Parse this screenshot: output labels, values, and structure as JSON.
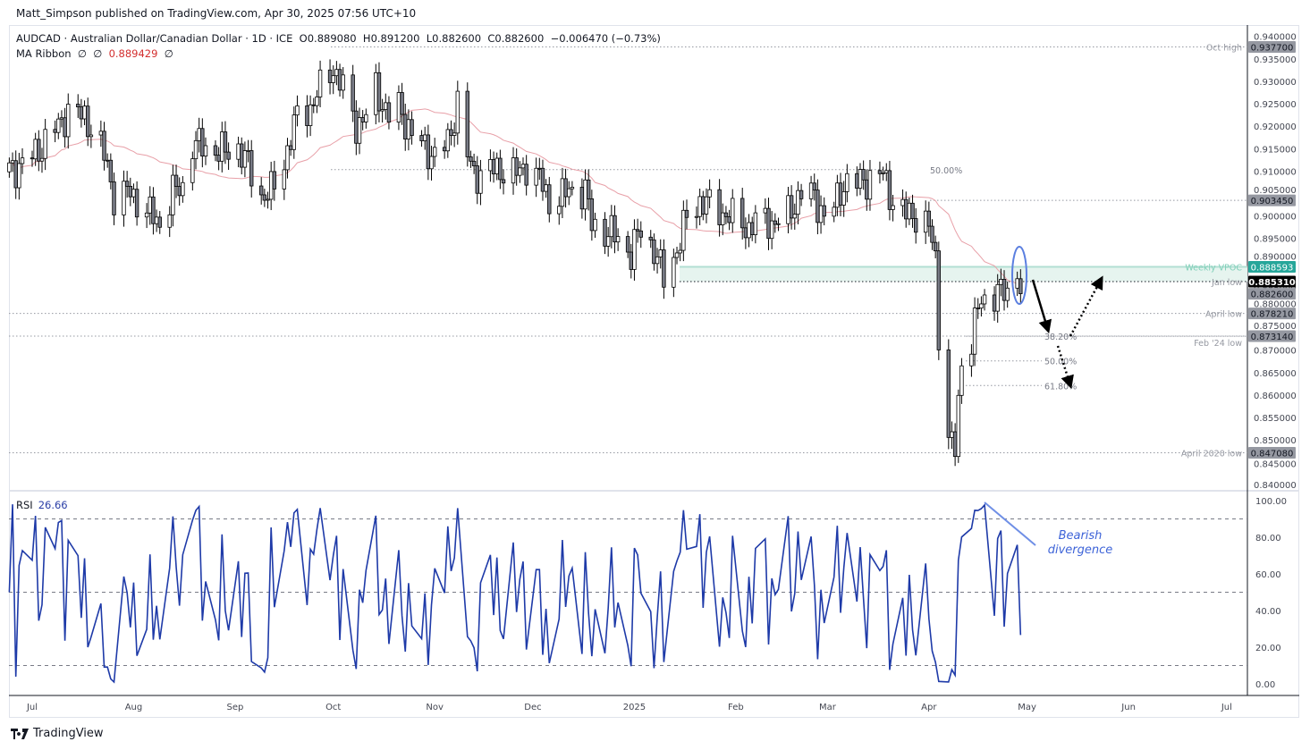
{
  "publisher": "Matt_Simpson published on TradingView.com, Apr 30, 2025 07:56 UTC+10",
  "legend": {
    "symbol": "AUDCAD · Australian Dollar/Canadian Dollar · 1D · ICE",
    "open": "O0.889080",
    "high": "H0.891200",
    "low": "L0.882600",
    "close": "C0.882600",
    "change": "−0.006470 (−0.73%)",
    "ma_label": "MA Ribbon",
    "ma_a": "∅",
    "ma_b": "∅",
    "ma_value": "0.889429",
    "ma_c": "∅"
  },
  "rsi": {
    "label": "RSI",
    "value": "26.66",
    "levels": [
      90,
      50,
      10
    ]
  },
  "annotation": {
    "bearish_line1": "Bearish",
    "bearish_line2": "divergence"
  },
  "footer": {
    "brand": "TradingView"
  },
  "colors": {
    "up": "#ffffff",
    "down": "#787b86",
    "outline": "#000000",
    "ma": "#e8a0a8",
    "rsi": "#1e3aa8",
    "vpoc": "#26a69a",
    "vpoc_zone": "#e6f4ef",
    "ellipse": "#5b7fe0"
  },
  "chart_data": {
    "type": "candlestick",
    "symbol": "AUDCAD",
    "interval": "1D",
    "last_bar": {
      "open": 0.88908,
      "high": 0.8912,
      "low": 0.8826,
      "close": 0.8826
    },
    "ylim": [
      0.84,
      0.94
    ],
    "y_ticks": [
      "0.940000",
      "0.935000",
      "0.930000",
      "0.925000",
      "0.920000",
      "0.915000",
      "0.910000",
      "0.905000",
      "0.900000",
      "0.895000",
      "0.890000",
      "0.885000",
      "0.880000",
      "0.875000",
      "0.870000",
      "0.865000",
      "0.860000",
      "0.855000",
      "0.850000",
      "0.845000",
      "0.840000"
    ],
    "x_ticks": [
      {
        "label": "Jul",
        "date": "2024-07-01"
      },
      {
        "label": "Aug",
        "date": "2024-08-01"
      },
      {
        "label": "Sep",
        "date": "2024-09-01"
      },
      {
        "label": "Oct",
        "date": "2024-10-01"
      },
      {
        "label": "Nov",
        "date": "2024-11-01"
      },
      {
        "label": "Dec",
        "date": "2024-12-01"
      },
      {
        "label": "2025",
        "date": "2025-01-01"
      },
      {
        "label": "Feb",
        "date": "2025-02-01"
      },
      {
        "label": "Mar",
        "date": "2025-03-01"
      },
      {
        "label": "Apr",
        "date": "2025-04-01"
      },
      {
        "label": "May",
        "date": "2025-05-01"
      },
      {
        "label": "Jun",
        "date": "2025-06-01"
      },
      {
        "label": "Jul",
        "date": "2025-07-01"
      }
    ],
    "rsi_ticks": [
      "100.00",
      "80.00",
      "60.00",
      "40.00",
      "20.00",
      "0.00"
    ],
    "approx_closes": [
      [
        "2024-06-24",
        0.9103
      ],
      [
        "2024-06-28",
        0.9113
      ],
      [
        "2024-07-05",
        0.9162
      ],
      [
        "2024-07-08",
        0.9192
      ],
      [
        "2024-07-12",
        0.9232
      ],
      [
        "2024-07-17",
        0.9222
      ],
      [
        "2024-07-21",
        0.9172
      ],
      [
        "2024-07-24",
        0.9113
      ],
      [
        "2024-07-26",
        0.9043
      ],
      [
        "2024-07-31",
        0.9053
      ],
      [
        "2024-08-02",
        0.9033
      ],
      [
        "2024-08-06",
        0.9003
      ],
      [
        "2024-08-09",
        0.8983
      ],
      [
        "2024-08-13",
        0.9053
      ],
      [
        "2024-08-16",
        0.9063
      ],
      [
        "2024-08-19",
        0.9162
      ],
      [
        "2024-08-23",
        0.9152
      ],
      [
        "2024-08-29",
        0.9142
      ],
      [
        "2024-09-02",
        0.9152
      ],
      [
        "2024-09-05",
        0.9113
      ],
      [
        "2024-09-09",
        0.9043
      ],
      [
        "2024-09-12",
        0.9053
      ],
      [
        "2024-09-16",
        0.9123
      ],
      [
        "2024-09-20",
        0.9222
      ],
      [
        "2024-09-24",
        0.9242
      ],
      [
        "2024-09-27",
        0.9282
      ],
      [
        "2024-10-01",
        0.9332
      ],
      [
        "2024-10-04",
        0.9282
      ],
      [
        "2024-10-08",
        0.9202
      ],
      [
        "2024-10-11",
        0.9222
      ],
      [
        "2024-10-14",
        0.9282
      ],
      [
        "2024-10-18",
        0.9222
      ],
      [
        "2024-10-21",
        0.9242
      ],
      [
        "2024-10-25",
        0.9182
      ],
      [
        "2024-10-29",
        0.9152
      ],
      [
        "2024-11-01",
        0.9133
      ],
      [
        "2024-11-05",
        0.9162
      ],
      [
        "2024-11-08",
        0.9252
      ],
      [
        "2024-11-11",
        0.9133
      ],
      [
        "2024-11-13",
        0.9093
      ],
      [
        "2024-11-18",
        0.9103
      ],
      [
        "2024-11-22",
        0.9103
      ],
      [
        "2024-11-26",
        0.9093
      ],
      [
        "2024-11-29",
        0.9113
      ],
      [
        "2024-12-03",
        0.9083
      ],
      [
        "2024-12-06",
        0.9033
      ],
      [
        "2024-12-10",
        0.9043
      ],
      [
        "2024-12-13",
        0.9063
      ],
      [
        "2024-12-17",
        0.9053
      ],
      [
        "2024-12-19",
        0.8983
      ],
      [
        "2024-12-23",
        0.8963
      ],
      [
        "2024-12-27",
        0.8953
      ],
      [
        "2024-12-31",
        0.8913
      ],
      [
        "2025-01-03",
        0.8973
      ],
      [
        "2025-01-07",
        0.8923
      ],
      [
        "2025-01-10",
        0.8863
      ],
      [
        "2025-01-14",
        0.8923
      ],
      [
        "2025-01-17",
        0.8993
      ],
      [
        "2025-01-21",
        0.9033
      ],
      [
        "2025-01-24",
        0.9023
      ],
      [
        "2025-01-29",
        0.9003
      ],
      [
        "2025-02-05",
        0.8973
      ],
      [
        "2025-02-09",
        0.8993
      ],
      [
        "2025-02-13",
        0.8983
      ],
      [
        "2025-02-17",
        0.9003
      ],
      [
        "2025-02-21",
        0.9053
      ],
      [
        "2025-02-25",
        0.9043
      ],
      [
        "2025-03-01",
        0.8983
      ],
      [
        "2025-03-06",
        0.9073
      ],
      [
        "2025-03-10",
        0.9073
      ],
      [
        "2025-03-14",
        0.9083
      ],
      [
        "2025-03-18",
        0.9093
      ],
      [
        "2025-03-21",
        0.9033
      ],
      [
        "2025-03-25",
        0.9003
      ],
      [
        "2025-03-29",
        0.9003
      ],
      [
        "2025-04-01",
        0.8973
      ],
      [
        "2025-04-03",
        0.8903
      ],
      [
        "2025-04-05",
        0.8584
      ],
      [
        "2025-04-07",
        0.8504
      ],
      [
        "2025-04-09",
        0.8474
      ],
      [
        "2025-04-11",
        0.8683
      ],
      [
        "2025-04-14",
        0.8723
      ],
      [
        "2025-04-16",
        0.8793
      ],
      [
        "2025-04-19",
        0.8823
      ],
      [
        "2025-04-22",
        0.8833
      ],
      [
        "2025-04-25",
        0.8823
      ],
      [
        "2025-04-27",
        0.8873
      ],
      [
        "2025-04-28",
        0.8883
      ],
      [
        "2025-04-29",
        0.8826
      ]
    ],
    "levels": [
      {
        "label": "Oct high",
        "price": 0.9377,
        "tag": "0.937700"
      },
      {
        "label": "",
        "price": 0.90345,
        "tag": "0.903450"
      },
      {
        "label": "Weekly VPOC",
        "price": 0.888593,
        "tag": "0.888593"
      },
      {
        "label": "Jan low",
        "price": 0.88531,
        "tag": "0.885310"
      },
      {
        "label": "",
        "price": 0.8826,
        "tag": "0.882600"
      },
      {
        "label": "April low",
        "price": 0.87821,
        "tag": "0.878210"
      },
      {
        "label": "Feb '24 low",
        "price": 0.87314,
        "tag": "0.873140"
      },
      {
        "label": "April 2020 low",
        "price": 0.84708,
        "tag": "0.847080"
      }
    ],
    "fib": [
      {
        "label": "50.00%",
        "price": 0.9103
      },
      {
        "label": "38.20%",
        "price": 0.8731
      },
      {
        "label": "50.00%",
        "price": 0.8676
      },
      {
        "label": "61.80%",
        "price": 0.8621
      }
    ]
  }
}
